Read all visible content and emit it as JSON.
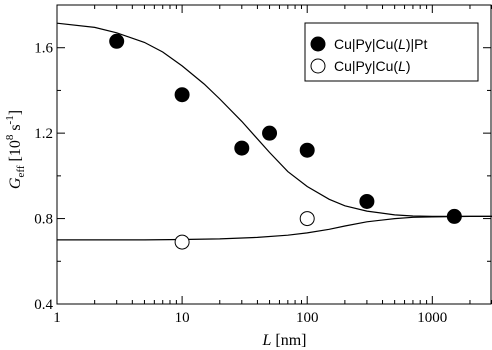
{
  "chart_data": {
    "type": "scatter",
    "xscale": "log",
    "xlim": [
      1,
      3000
    ],
    "ylim": [
      0.4,
      1.8
    ],
    "xticks": [
      1,
      10,
      100,
      1000
    ],
    "xtick_labels": [
      "1",
      "10",
      "100",
      "1000"
    ],
    "yticks": [
      0.4,
      0.8,
      1.2,
      1.6
    ],
    "ytick_labels": [
      "0.4",
      "0.8",
      "1.2",
      "1.6"
    ],
    "xlabel": {
      "italic": "L",
      "rest": " [nm]"
    },
    "ylabel": {
      "main": "G",
      "sub": "eff",
      "rest": " [10",
      "sup": "8",
      "rest2": " s",
      "sup2": "-1",
      "rest3": "]"
    },
    "grid": false,
    "legend_position": "top-right",
    "series": [
      {
        "name": {
          "a": "Cu|Py|Cu(",
          "italic": "L",
          "b": ")|Pt"
        },
        "marker": "filled-circle",
        "color": "#000000",
        "points": [
          {
            "x": 3,
            "y": 1.63
          },
          {
            "x": 10,
            "y": 1.38
          },
          {
            "x": 30,
            "y": 1.13
          },
          {
            "x": 50,
            "y": 1.2
          },
          {
            "x": 100,
            "y": 1.12
          },
          {
            "x": 300,
            "y": 0.88
          },
          {
            "x": 1500,
            "y": 0.81
          }
        ]
      },
      {
        "name": {
          "a": "Cu|Py|Cu(",
          "italic": "L",
          "b": ")"
        },
        "marker": "open-circle",
        "color": "#000000",
        "points": [
          {
            "x": 10,
            "y": 0.69
          },
          {
            "x": 100,
            "y": 0.8
          }
        ]
      }
    ],
    "curves": [
      {
        "points": [
          {
            "x": 1,
            "y": 1.715
          },
          {
            "x": 2,
            "y": 1.695
          },
          {
            "x": 3,
            "y": 1.67
          },
          {
            "x": 5,
            "y": 1.625
          },
          {
            "x": 7,
            "y": 1.58
          },
          {
            "x": 10,
            "y": 1.515
          },
          {
            "x": 15,
            "y": 1.43
          },
          {
            "x": 20,
            "y": 1.36
          },
          {
            "x": 30,
            "y": 1.255
          },
          {
            "x": 50,
            "y": 1.11
          },
          {
            "x": 70,
            "y": 1.02
          },
          {
            "x": 100,
            "y": 0.95
          },
          {
            "x": 150,
            "y": 0.89
          },
          {
            "x": 200,
            "y": 0.86
          },
          {
            "x": 300,
            "y": 0.835
          },
          {
            "x": 500,
            "y": 0.817
          },
          {
            "x": 700,
            "y": 0.812
          },
          {
            "x": 1000,
            "y": 0.81
          },
          {
            "x": 2000,
            "y": 0.81
          },
          {
            "x": 3000,
            "y": 0.81
          }
        ]
      },
      {
        "points": [
          {
            "x": 1,
            "y": 0.7
          },
          {
            "x": 5,
            "y": 0.7
          },
          {
            "x": 10,
            "y": 0.702
          },
          {
            "x": 20,
            "y": 0.705
          },
          {
            "x": 40,
            "y": 0.712
          },
          {
            "x": 70,
            "y": 0.722
          },
          {
            "x": 100,
            "y": 0.733
          },
          {
            "x": 150,
            "y": 0.75
          },
          {
            "x": 200,
            "y": 0.765
          },
          {
            "x": 300,
            "y": 0.785
          },
          {
            "x": 500,
            "y": 0.8
          },
          {
            "x": 700,
            "y": 0.806
          },
          {
            "x": 1000,
            "y": 0.808
          },
          {
            "x": 2000,
            "y": 0.81
          },
          {
            "x": 3000,
            "y": 0.81
          }
        ]
      }
    ]
  }
}
